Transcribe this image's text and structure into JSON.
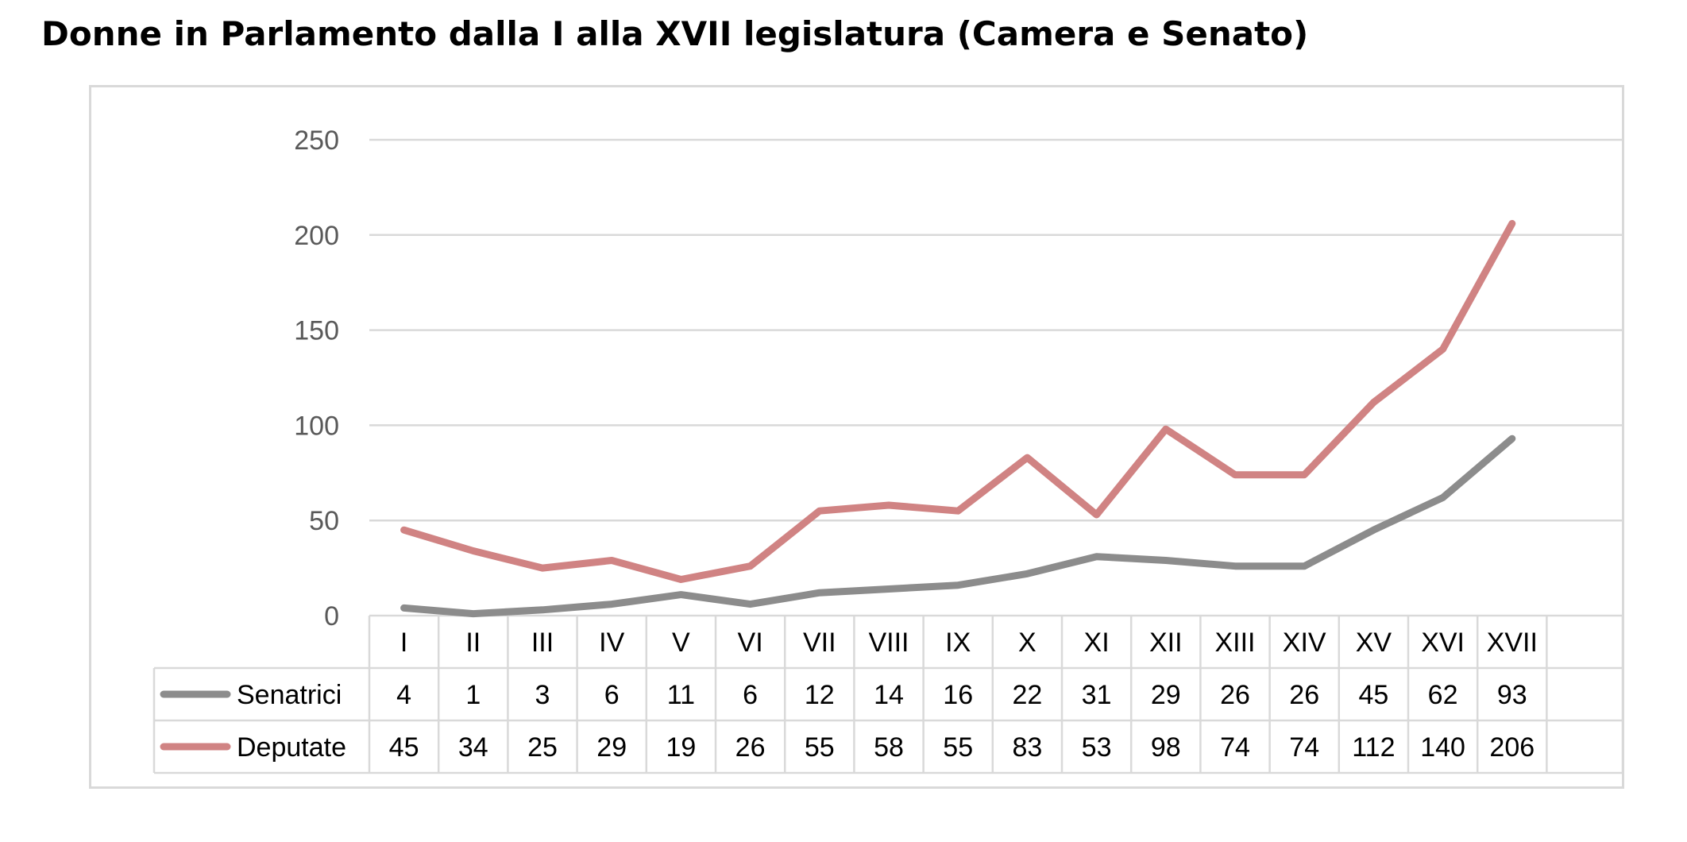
{
  "title": "Donne in Parlamento dalla I alla XVII legislatura (Camera e Senato)",
  "chart_data": {
    "type": "line",
    "title": "Donne in Parlamento dalla I alla XVII legislatura (Camera e Senato)",
    "xlabel": "",
    "ylabel": "",
    "ylim": [
      0,
      250
    ],
    "yticks": [
      0,
      50,
      100,
      150,
      200,
      250
    ],
    "grid": true,
    "legend": "data-table",
    "categories": [
      "I",
      "II",
      "III",
      "IV",
      "V",
      "VI",
      "VII",
      "VIII",
      "IX",
      "X",
      "XI",
      "XII",
      "XIII",
      "XIV",
      "XV",
      "XVI",
      "XVII"
    ],
    "series": [
      {
        "name": "Senatrici",
        "color": "#8c8c8c",
        "values": [
          4,
          1,
          3,
          6,
          11,
          6,
          12,
          14,
          16,
          22,
          31,
          29,
          26,
          26,
          45,
          62,
          93
        ]
      },
      {
        "name": "Deputate",
        "color": "#d08383",
        "values": [
          45,
          34,
          25,
          29,
          19,
          26,
          55,
          58,
          55,
          83,
          53,
          98,
          74,
          74,
          112,
          140,
          206
        ]
      }
    ]
  }
}
